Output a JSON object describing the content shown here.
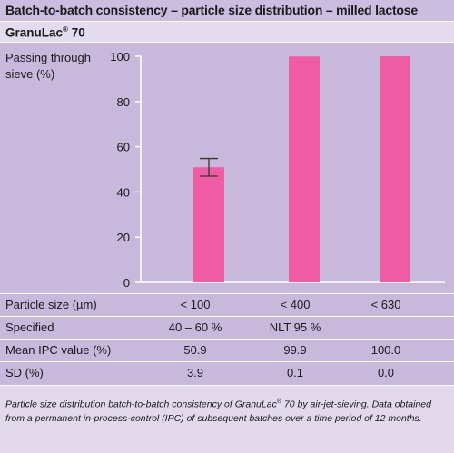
{
  "title": "Batch-to-batch consistency – particle size distribution – milled lactose",
  "product": {
    "name": "GranuLac",
    "mark": "®",
    "grade": " 70"
  },
  "chart_data": {
    "type": "bar",
    "ylabel": "Passing through sieve (%)",
    "ylim": [
      0,
      100
    ],
    "yticks": [
      "0",
      "20",
      "40",
      "60",
      "80",
      "100"
    ],
    "categories": [
      "< 100",
      "< 400",
      "< 630"
    ],
    "values": [
      50.9,
      99.9,
      100.0
    ],
    "error": [
      3.9,
      0.1,
      0.0
    ],
    "bar_color": "#f05ca4",
    "axis_color": "#ffffff"
  },
  "table": {
    "rows": [
      {
        "label": "Particle size (µm)",
        "cells": [
          "< 100",
          "< 400",
          "< 630"
        ]
      },
      {
        "label": "Specified",
        "cells": [
          "40 – 60 %",
          "NLT 95 %",
          ""
        ]
      },
      {
        "label": "Mean IPC value (%)",
        "cells": [
          "50.9",
          "99.9",
          "100.0"
        ]
      },
      {
        "label": "SD (%)",
        "cells": [
          "3.9",
          "0.1",
          "0.0"
        ]
      }
    ]
  },
  "caption": {
    "part1": "Particle size distribution batch-to-batch consistency of GranuLac",
    "mark": "®",
    "part2": " 70 by air-jet-sieving. Data obtained from a permanent in-process-control (IPC) of subsequent batches over a time period of 12 months."
  }
}
